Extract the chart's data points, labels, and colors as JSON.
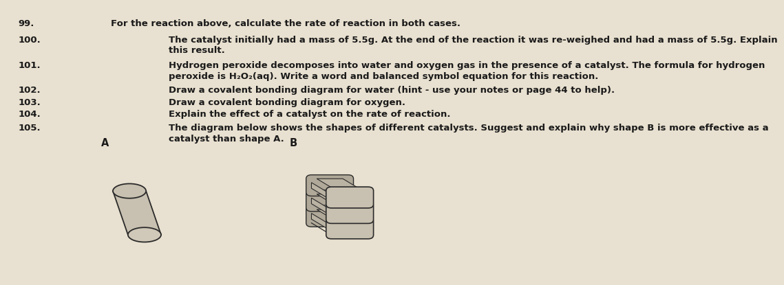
{
  "bg_color": "#e8e0d0",
  "text_color": "#1a1a1a",
  "lines": [
    {
      "num": "99.",
      "indent": 0.18,
      "text": "For the reaction above, calculate the rate of reaction in both cases."
    },
    {
      "num": "100.",
      "indent": 0.28,
      "text": "The catalyst initially had a mass of 5.5g. At the end of the reaction it was re-weighed and had a mass of 5.5g. Explain"
    },
    {
      "num": "",
      "indent": 0.28,
      "text": "this result."
    },
    {
      "num": "101.",
      "indent": 0.28,
      "text": "Hydrogen peroxide decomposes into water and oxygen gas in the presence of a catalyst. The formula for hydrogen"
    },
    {
      "num": "",
      "indent": 0.28,
      "text": "peroxide is H₂O₂(aq). Write a word and balanced symbol equation for this reaction."
    },
    {
      "num": "102.",
      "indent": 0.28,
      "text": "Draw a covalent bonding diagram for water (hint - use your notes or page 44 to help)."
    },
    {
      "num": "103.",
      "indent": 0.28,
      "text": "Draw a covalent bonding diagram for oxygen."
    },
    {
      "num": "104.",
      "indent": 0.28,
      "text": "Explain the effect of a catalyst on the rate of reaction."
    },
    {
      "num": "105.",
      "indent": 0.28,
      "text": "The diagram below shows the shapes of different catalysts. Suggest and explain why shape B is more effective as a"
    },
    {
      "num": "",
      "indent": 0.28,
      "text": "catalyst than shape A."
    }
  ],
  "label_A": "A",
  "label_B": "B",
  "shape_color": "#c8c0b0",
  "shape_edge_color": "#2a2a2a",
  "font_size": 9.5
}
